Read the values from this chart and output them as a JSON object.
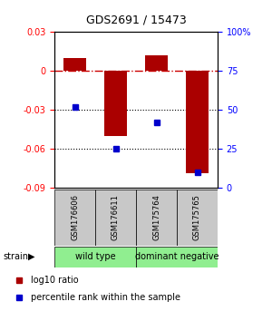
{
  "title": "GDS2691 / 15473",
  "samples": [
    "GSM176606",
    "GSM176611",
    "GSM175764",
    "GSM175765"
  ],
  "log10_ratio": [
    0.01,
    -0.05,
    0.012,
    -0.079
  ],
  "percentile_rank": [
    52,
    25,
    42,
    10
  ],
  "left_ylim": [
    -0.09,
    0.03
  ],
  "right_ylim": [
    0,
    100
  ],
  "left_yticks": [
    -0.09,
    -0.06,
    -0.03,
    0.0,
    0.03
  ],
  "left_yticklabels": [
    "-0.09",
    "-0.06",
    "-0.03",
    "0",
    "0.03"
  ],
  "right_yticks": [
    0,
    25,
    50,
    75,
    100
  ],
  "right_yticklabels": [
    "0",
    "25",
    "50",
    "75",
    "100%"
  ],
  "dotted_lines": [
    -0.03,
    -0.06
  ],
  "zero_line": 0.0,
  "groups": [
    {
      "label": "wild type",
      "samples": [
        0,
        1
      ],
      "color": "#90EE90"
    },
    {
      "label": "dominant negative",
      "samples": [
        2,
        3
      ],
      "color": "#90EE90"
    }
  ],
  "bar_color": "#AA0000",
  "dot_color": "#0000CC",
  "bar_width": 0.55,
  "background_color": "#ffffff",
  "plot_bg": "#ffffff",
  "gray_box_color": "#C8C8C8",
  "strain_label": "strain",
  "legend_items": [
    {
      "color": "#AA0000",
      "label": "log10 ratio"
    },
    {
      "color": "#0000CC",
      "label": "percentile rank within the sample"
    }
  ]
}
